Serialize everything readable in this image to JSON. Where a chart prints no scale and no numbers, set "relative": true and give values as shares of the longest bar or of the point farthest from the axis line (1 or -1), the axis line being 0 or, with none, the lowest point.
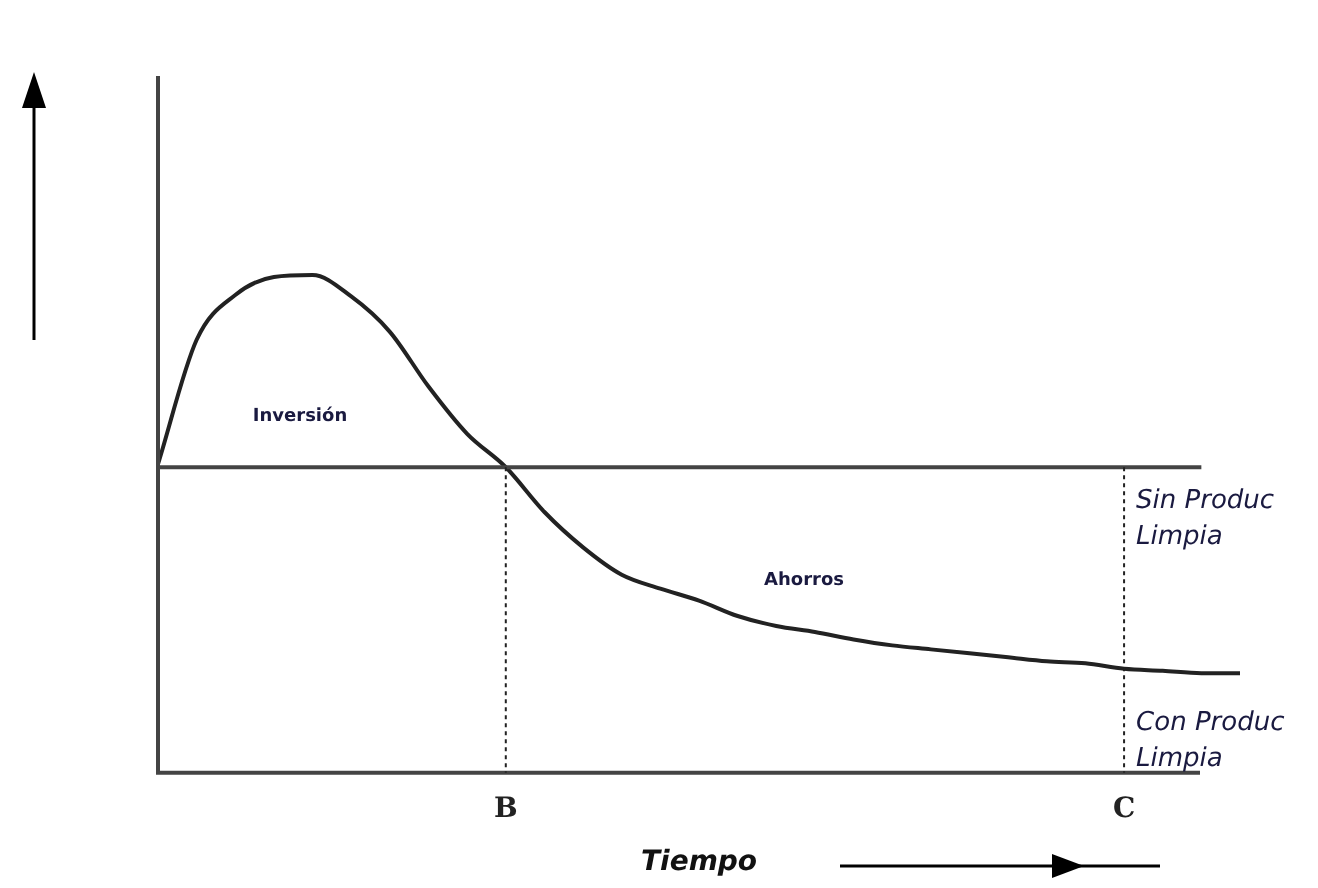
{
  "chart_data": {
    "type": "line",
    "relative": true,
    "xlabel": "Tiempo",
    "categories": [
      null,
      null,
      null,
      null,
      null,
      null,
      null,
      null,
      null,
      "B",
      null,
      null,
      null,
      null,
      null,
      null,
      null,
      null,
      null,
      null,
      null,
      null,
      null,
      null,
      null,
      "C",
      null,
      null,
      null
    ],
    "series": [
      {
        "name": "Sin Produc Limpia",
        "color": "#444444",
        "values": [
          0.614,
          0.614,
          0.614,
          0.614,
          0.614,
          0.614,
          0.614,
          0.614,
          0.614,
          0.614,
          0.614,
          0.614,
          0.614,
          0.614,
          0.614,
          0.614,
          0.614,
          0.614,
          0.614,
          0.614,
          0.614,
          0.614,
          0.614,
          0.614,
          0.614,
          0.614,
          0.614,
          0.614,
          null
        ]
      },
      {
        "name": "Con Produc Limpia",
        "color": "#222222",
        "values": [
          0.62,
          0.87,
          0.96,
          0.996,
          1,
          0.957,
          0.886,
          0.776,
          0.681,
          0.614,
          0.524,
          0.453,
          0.398,
          0.37,
          0.346,
          0.315,
          0.295,
          0.283,
          0.268,
          0.256,
          0.248,
          0.24,
          0.232,
          0.224,
          0.22,
          0.209,
          0.205,
          0.2,
          0.2
        ]
      }
    ],
    "ref_lines": [
      {
        "axis": "x",
        "value": "B",
        "line_style": "dotted"
      },
      {
        "axis": "x",
        "value": "C",
        "line_style": "dotted"
      }
    ],
    "annotations": [
      "Inversión",
      "Ahorros"
    ],
    "grid": false,
    "legend": false,
    "marker": "none",
    "line_style": "solid"
  }
}
